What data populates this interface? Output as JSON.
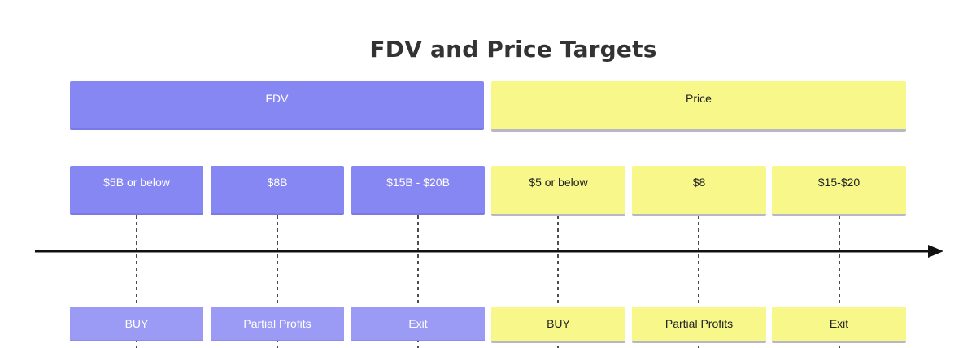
{
  "title": "FDV and Price Targets",
  "groups": {
    "fdv": {
      "label": "FDV",
      "targets": [
        "$5B or below",
        "$8B",
        "$15B - $20B"
      ],
      "actions": [
        "BUY",
        "Partial Profits",
        "Exit"
      ]
    },
    "price": {
      "label": "Price",
      "targets": [
        "$5 or below",
        "$8",
        "$15-$20"
      ],
      "actions": [
        "BUY",
        "Partial Profits",
        "Exit"
      ]
    }
  },
  "colors": {
    "fdv": "#8787f3",
    "fdv_action": "#9b9bf5",
    "price": "#f8f88a",
    "line": "#111111"
  }
}
